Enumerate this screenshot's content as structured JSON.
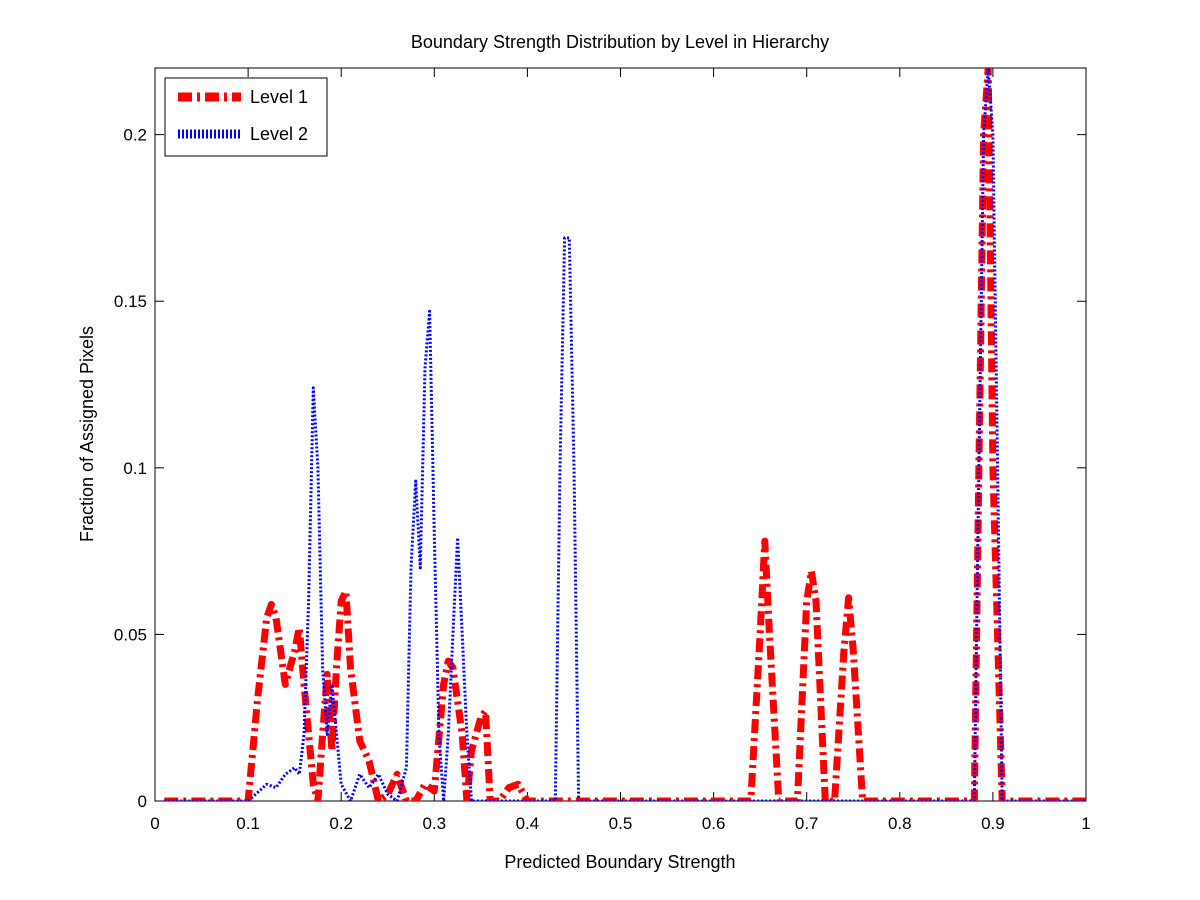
{
  "chart_data": {
    "type": "line",
    "title": "Boundary Strength Distribution by Level in Hierarchy",
    "xlabel": "Predicted Boundary Strength",
    "ylabel": "Fraction of Assigned Pixels",
    "xlim": [
      0,
      1
    ],
    "ylim": [
      0,
      0.22
    ],
    "xticks": [
      0,
      0.1,
      0.2,
      0.3,
      0.4,
      0.5,
      0.6,
      0.7,
      0.8,
      0.9,
      1
    ],
    "xtick_labels": [
      "0",
      "0.1",
      "0.2",
      "0.3",
      "0.4",
      "0.5",
      "0.6",
      "0.7",
      "0.8",
      "0.9",
      "1"
    ],
    "yticks": [
      0,
      0.05,
      0.1,
      0.15,
      0.2
    ],
    "ytick_labels": [
      "0",
      "0.05",
      "0.1",
      "0.15",
      "0.2"
    ],
    "grid": false,
    "legend_position": "top-left",
    "series": [
      {
        "name": "Level 1",
        "color": "#ff0000",
        "style": "dash-dot",
        "x": [
          0.01,
          0.1,
          0.11,
          0.12,
          0.125,
          0.13,
          0.14,
          0.15,
          0.155,
          0.16,
          0.17,
          0.175,
          0.18,
          0.185,
          0.19,
          0.195,
          0.2,
          0.205,
          0.21,
          0.22,
          0.23,
          0.24,
          0.25,
          0.26,
          0.27,
          0.28,
          0.29,
          0.3,
          0.31,
          0.315,
          0.32,
          0.33,
          0.335,
          0.34,
          0.35,
          0.355,
          0.36,
          0.37,
          0.38,
          0.39,
          0.4,
          0.41,
          0.64,
          0.65,
          0.655,
          0.66,
          0.67,
          0.68,
          0.69,
          0.7,
          0.705,
          0.71,
          0.72,
          0.73,
          0.74,
          0.745,
          0.75,
          0.76,
          0.88,
          0.885,
          0.89,
          0.895,
          0.9,
          0.91,
          1.0
        ],
        "y": [
          0.0,
          0.0,
          0.03,
          0.055,
          0.059,
          0.055,
          0.035,
          0.045,
          0.052,
          0.035,
          0.005,
          0.0,
          0.02,
          0.038,
          0.015,
          0.04,
          0.06,
          0.063,
          0.04,
          0.018,
          0.012,
          0.0,
          0.002,
          0.008,
          0.0,
          0.0,
          0.005,
          0.003,
          0.035,
          0.042,
          0.04,
          0.02,
          0.0,
          0.015,
          0.025,
          0.027,
          0.0,
          0.0,
          0.004,
          0.005,
          0.0,
          0.0,
          0.0,
          0.05,
          0.078,
          0.05,
          0.0,
          0.0,
          0.0,
          0.06,
          0.069,
          0.06,
          0.0,
          0.0,
          0.045,
          0.061,
          0.045,
          0.0,
          0.0,
          0.1,
          0.2,
          0.22,
          0.1,
          0.0,
          0.0
        ]
      },
      {
        "name": "Level 2",
        "color": "#0000ff",
        "style": "dotted",
        "x": [
          0.01,
          0.1,
          0.12,
          0.13,
          0.14,
          0.15,
          0.155,
          0.16,
          0.165,
          0.17,
          0.175,
          0.18,
          0.185,
          0.19,
          0.2,
          0.21,
          0.22,
          0.23,
          0.24,
          0.25,
          0.26,
          0.27,
          0.275,
          0.28,
          0.285,
          0.29,
          0.295,
          0.3,
          0.305,
          0.31,
          0.315,
          0.32,
          0.325,
          0.33,
          0.335,
          0.34,
          0.43,
          0.435,
          0.44,
          0.445,
          0.45,
          0.455,
          0.46,
          0.88,
          0.885,
          0.89,
          0.895,
          0.9,
          0.905,
          0.91,
          1.0
        ],
        "y": [
          0.0,
          0.0,
          0.005,
          0.004,
          0.008,
          0.01,
          0.008,
          0.02,
          0.06,
          0.124,
          0.1,
          0.04,
          0.02,
          0.035,
          0.005,
          0.0,
          0.008,
          0.004,
          0.008,
          0.002,
          0.0,
          0.01,
          0.07,
          0.096,
          0.07,
          0.13,
          0.147,
          0.08,
          0.02,
          0.0,
          0.02,
          0.05,
          0.079,
          0.05,
          0.02,
          0.0,
          0.0,
          0.1,
          0.169,
          0.169,
          0.1,
          0.0,
          0.0,
          0.0,
          0.1,
          0.2,
          0.22,
          0.2,
          0.1,
          0.0,
          0.0
        ]
      }
    ]
  },
  "colors": {
    "axes": "#000000",
    "background": "#ffffff"
  }
}
